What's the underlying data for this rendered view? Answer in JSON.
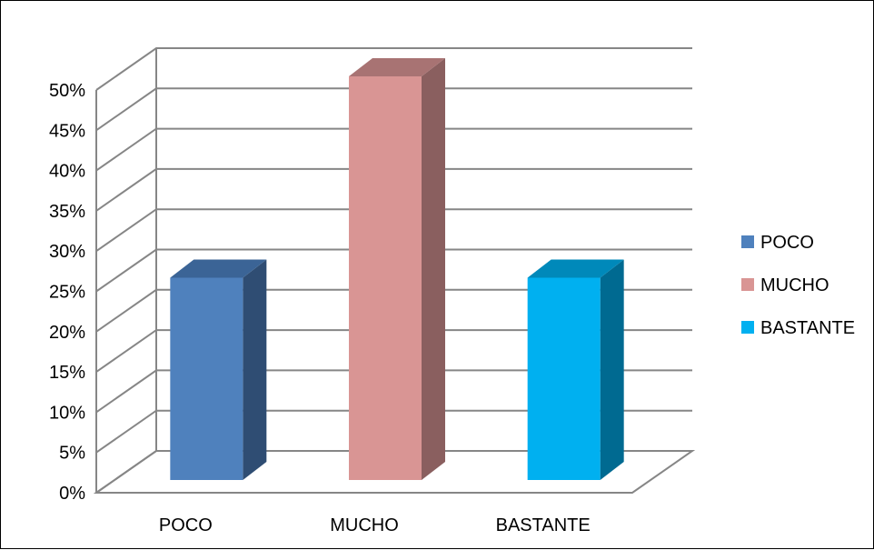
{
  "chart_data": {
    "type": "bar",
    "style": "3d-column",
    "categories": [
      "POCO",
      "MUCHO",
      "BASTANTE"
    ],
    "values": [
      25,
      50,
      25
    ],
    "ylim": [
      0,
      50
    ],
    "yticks": [
      "0%",
      "5%",
      "10%",
      "15%",
      "20%",
      "25%",
      "30%",
      "35%",
      "40%",
      "45%",
      "50%"
    ],
    "grid": true,
    "legend": {
      "placement": "right",
      "entries": [
        "POCO",
        "MUCHO",
        "BASTANTE"
      ]
    },
    "colors": {
      "front": [
        "#4F81BD",
        "#D99594",
        "#00B0F0"
      ],
      "side": [
        "#2F4D73",
        "#8A5F5F",
        "#006A91"
      ],
      "top": [
        "#3B6496",
        "#A87373",
        "#0089BA"
      ],
      "grid": "#868686"
    }
  }
}
